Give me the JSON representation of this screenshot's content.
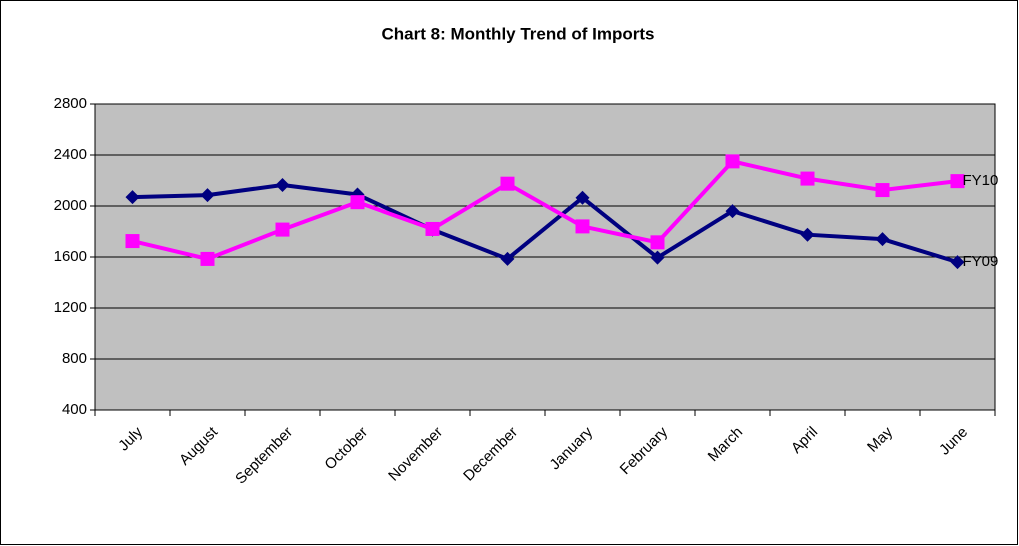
{
  "chart_data": {
    "type": "line",
    "title": "Chart 8: Monthly Trend of Imports",
    "categories": [
      "July",
      "August",
      "September",
      "October",
      "November",
      "December",
      "January",
      "February",
      "March",
      "April",
      "May",
      "June"
    ],
    "series": [
      {
        "name": "FY09",
        "color": "#000080",
        "marker": "diamond",
        "values": [
          2070,
          2085,
          2165,
          2090,
          1815,
          1585,
          2065,
          1595,
          1960,
          1775,
          1740,
          1560
        ]
      },
      {
        "name": "FY10",
        "color": "#ff00ff",
        "marker": "square",
        "values": [
          1725,
          1585,
          1815,
          2030,
          1820,
          2175,
          1840,
          1715,
          2350,
          2215,
          2125,
          2195
        ]
      }
    ],
    "ylim": [
      400,
      2800
    ],
    "yticks": [
      400,
      800,
      1200,
      1600,
      2000,
      2400,
      2800
    ],
    "grid": true
  }
}
